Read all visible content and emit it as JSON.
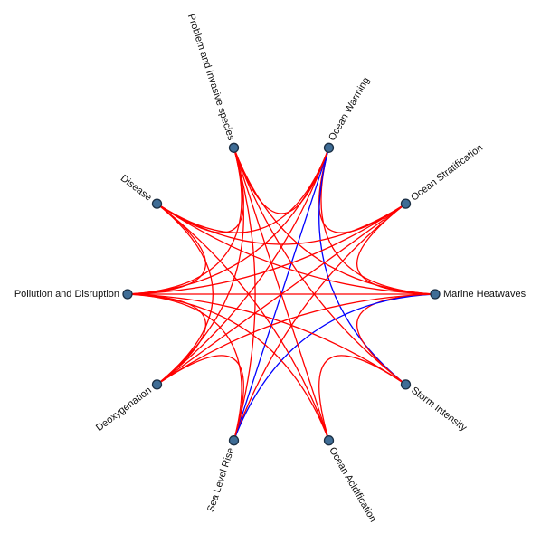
{
  "diagram": {
    "type": "chord-network",
    "colors": {
      "node_fill": "#3f6d96",
      "node_stroke": "#1b2f44",
      "positive_link": "#ff0000",
      "negative_link": "#0000ff"
    },
    "nodes": [
      {
        "id": "ocean-warming",
        "label": "Ocean Warming"
      },
      {
        "id": "ocean-stratification",
        "label": "Ocean Stratification"
      },
      {
        "id": "marine-heatwaves",
        "label": "Marine Heatwaves"
      },
      {
        "id": "storm-intensity",
        "label": "Storm Intensity"
      },
      {
        "id": "ocean-acidification",
        "label": "Ocean Acidification"
      },
      {
        "id": "sea-level-rise",
        "label": "Sea Level Rise"
      },
      {
        "id": "deoxygenation",
        "label": "Deoxygenation"
      },
      {
        "id": "pollution-and-disruption",
        "label": "Pollution and Disruption"
      },
      {
        "id": "disease",
        "label": "Disease"
      },
      {
        "id": "problem-and-invasive-species",
        "label": "Problem and Invasive species"
      }
    ],
    "links": [
      {
        "source": "ocean-warming",
        "target": "ocean-stratification",
        "color": "red"
      },
      {
        "source": "ocean-warming",
        "target": "marine-heatwaves",
        "color": "red"
      },
      {
        "source": "ocean-warming",
        "target": "storm-intensity",
        "color": "blue"
      },
      {
        "source": "ocean-warming",
        "target": "sea-level-rise",
        "color": "blue"
      },
      {
        "source": "ocean-warming",
        "target": "deoxygenation",
        "color": "red"
      },
      {
        "source": "ocean-warming",
        "target": "pollution-and-disruption",
        "color": "red"
      },
      {
        "source": "ocean-warming",
        "target": "disease",
        "color": "red"
      },
      {
        "source": "ocean-warming",
        "target": "problem-and-invasive-species",
        "color": "red"
      },
      {
        "source": "ocean-stratification",
        "target": "marine-heatwaves",
        "color": "red"
      },
      {
        "source": "ocean-stratification",
        "target": "sea-level-rise",
        "color": "red"
      },
      {
        "source": "ocean-stratification",
        "target": "deoxygenation",
        "color": "red"
      },
      {
        "source": "ocean-stratification",
        "target": "pollution-and-disruption",
        "color": "red"
      },
      {
        "source": "ocean-stratification",
        "target": "disease",
        "color": "red"
      },
      {
        "source": "marine-heatwaves",
        "target": "storm-intensity",
        "color": "red"
      },
      {
        "source": "marine-heatwaves",
        "target": "sea-level-rise",
        "color": "blue"
      },
      {
        "source": "marine-heatwaves",
        "target": "deoxygenation",
        "color": "red"
      },
      {
        "source": "marine-heatwaves",
        "target": "pollution-and-disruption",
        "color": "red"
      },
      {
        "source": "marine-heatwaves",
        "target": "disease",
        "color": "red"
      },
      {
        "source": "marine-heatwaves",
        "target": "problem-and-invasive-species",
        "color": "red"
      },
      {
        "source": "storm-intensity",
        "target": "ocean-acidification",
        "color": "red"
      },
      {
        "source": "storm-intensity",
        "target": "pollution-and-disruption",
        "color": "red"
      },
      {
        "source": "storm-intensity",
        "target": "problem-and-invasive-species",
        "color": "red"
      },
      {
        "source": "ocean-acidification",
        "target": "pollution-and-disruption",
        "color": "red"
      },
      {
        "source": "ocean-acidification",
        "target": "disease",
        "color": "red"
      },
      {
        "source": "ocean-acidification",
        "target": "problem-and-invasive-species",
        "color": "red"
      },
      {
        "source": "sea-level-rise",
        "target": "deoxygenation",
        "color": "red"
      },
      {
        "source": "sea-level-rise",
        "target": "pollution-and-disruption",
        "color": "red"
      },
      {
        "source": "sea-level-rise",
        "target": "problem-and-invasive-species",
        "color": "red"
      },
      {
        "source": "deoxygenation",
        "target": "pollution-and-disruption",
        "color": "red"
      },
      {
        "source": "deoxygenation",
        "target": "disease",
        "color": "red"
      },
      {
        "source": "deoxygenation",
        "target": "problem-and-invasive-species",
        "color": "red"
      },
      {
        "source": "pollution-and-disruption",
        "target": "disease",
        "color": "red"
      },
      {
        "source": "pollution-and-disruption",
        "target": "problem-and-invasive-species",
        "color": "red"
      },
      {
        "source": "disease",
        "target": "problem-and-invasive-species",
        "color": "red"
      }
    ]
  }
}
